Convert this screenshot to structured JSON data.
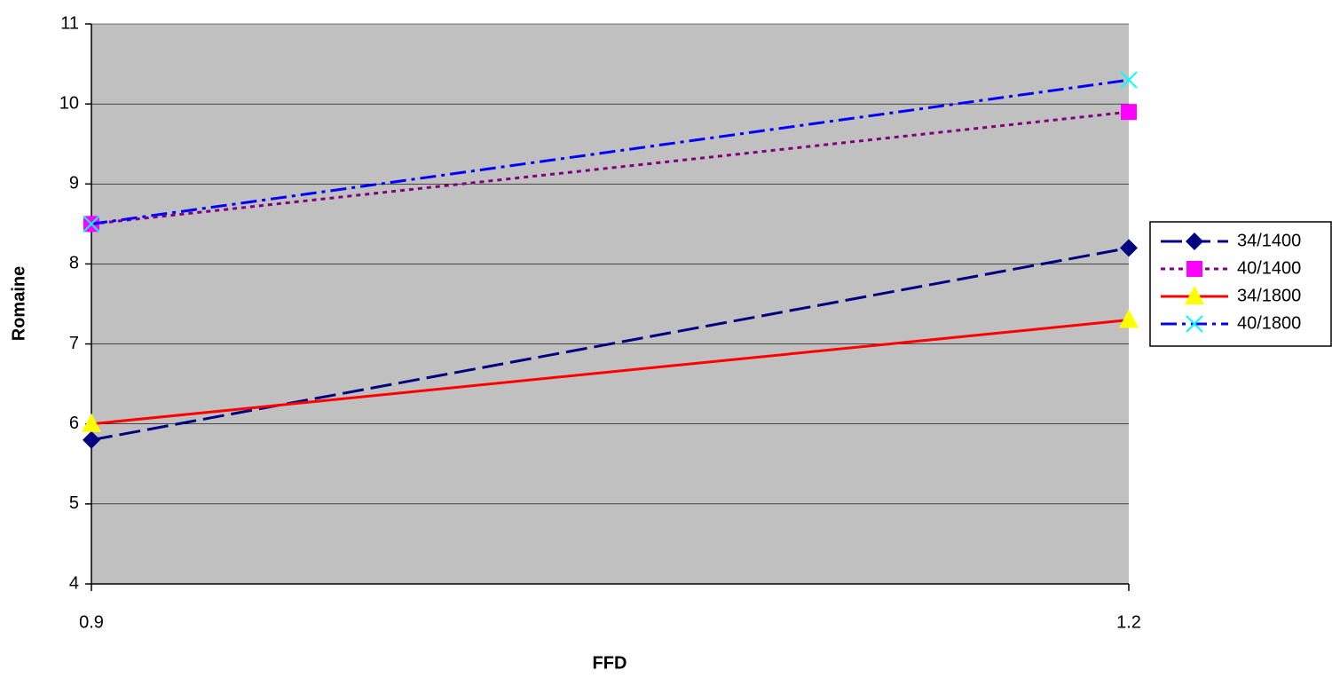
{
  "chart_data": {
    "type": "line",
    "x_label": "FFD",
    "y_label": "Romaine",
    "x": [
      0.9,
      1.2
    ],
    "xlim": [
      0.9,
      1.2
    ],
    "xticks": [
      0.9,
      1.2
    ],
    "ylim": [
      4,
      11
    ],
    "yticks": [
      4,
      5,
      6,
      7,
      8,
      9,
      10,
      11
    ],
    "grid": true,
    "legend": "right",
    "background": "#c0c0c0",
    "series": [
      {
        "name": "34/1400",
        "color": "#000080",
        "marker_color": "#000080",
        "marker": "diamond",
        "dash": "dash",
        "values": [
          5.8,
          8.2
        ]
      },
      {
        "name": "40/1400",
        "color": "#800080",
        "marker_color": "#ff00ff",
        "marker": "square",
        "dash": "dot",
        "values": [
          8.5,
          9.9
        ]
      },
      {
        "name": "34/1800",
        "color": "#ff0000",
        "marker_color": "#ffff00",
        "marker": "triangle",
        "dash": "solid",
        "values": [
          6.0,
          7.3
        ]
      },
      {
        "name": "40/1800",
        "color": "#0000ff",
        "marker_color": "#00ffff",
        "marker": "x",
        "dash": "dashdot",
        "values": [
          8.5,
          10.3
        ]
      }
    ]
  }
}
